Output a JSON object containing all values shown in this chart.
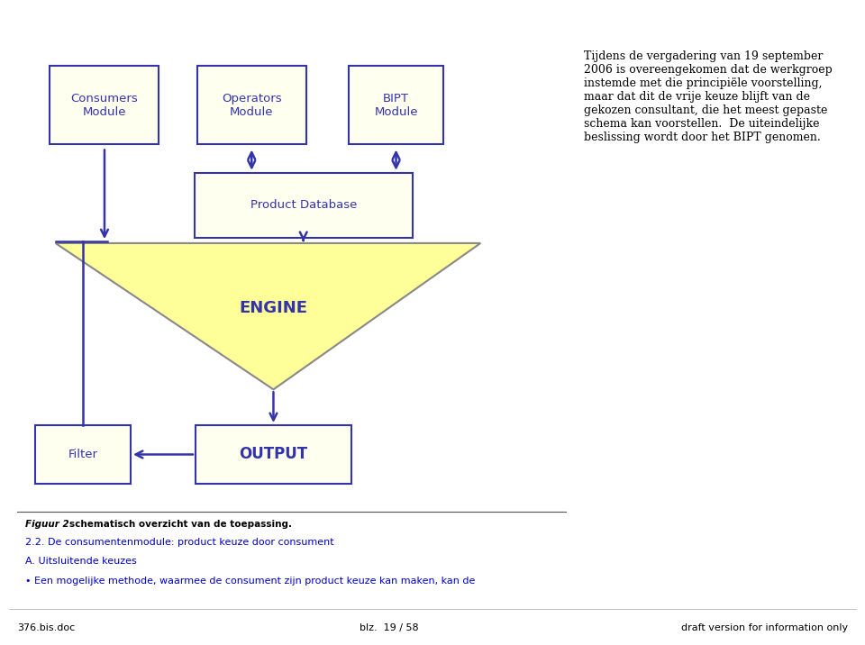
{
  "bg_color": "#ffffff",
  "diagram_bg": "#fffaaa",
  "box_fill": "#fffff0",
  "box_border": "#3333aa",
  "arrow_color": "#3333aa",
  "text_color": "#3333aa",
  "right_text_color": "#000000",
  "fig_width": 9.6,
  "fig_height": 7.16,
  "engine_label": "ENGINE",
  "right_text": "Tijdens de vergadering van 19 september\n2006 is overeengekomen dat de werkgroep\ninstemde met die principiële voorstelling,\nmaar dat dit de vrije keuze blijft van de\ngekozen consultant, die het meest gepaste\nschema kan voorstellen.  De uiteindelijke\nbeslissing wordt door het BIPT genomen.",
  "figuur_text_italic": "Figuur 2",
  "figuur_text_bold": "schematisch overzicht van de toepassing.",
  "section_link": "2.2. De consumentenmodule: product keuze door consument",
  "subsection_link": "A. Uitsluitende keuzes",
  "bullet_text": "Een mogelijke methode, waarmee de consument zijn product keuze kan maken, kan de",
  "footer_left": "376.bis.doc",
  "footer_mid": "blz.  19 / 58",
  "footer_right": "draft version for information only"
}
